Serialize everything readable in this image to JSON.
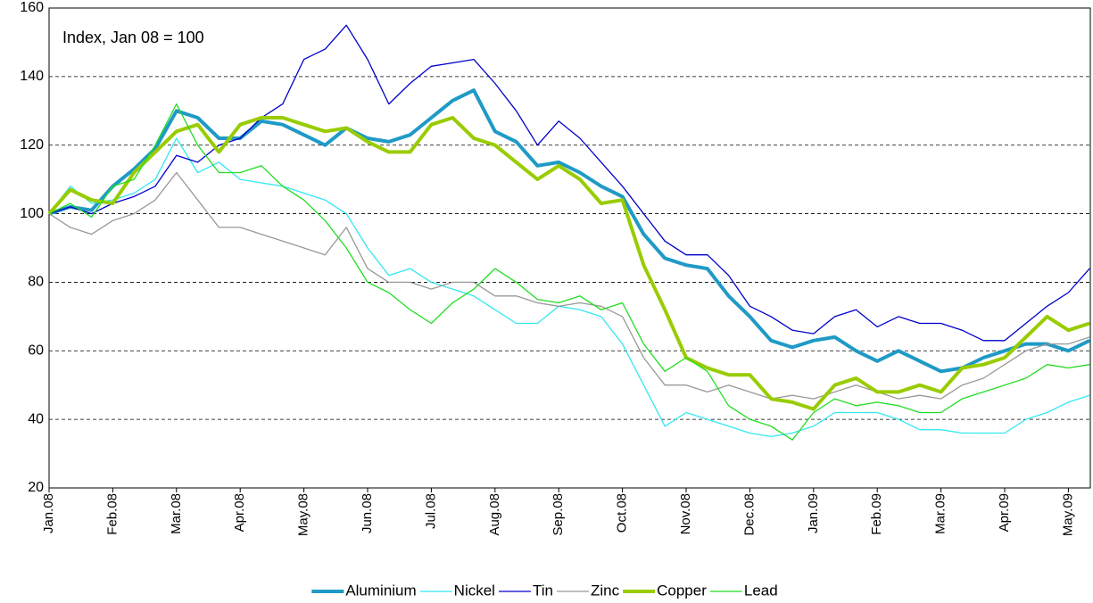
{
  "chart_data": {
    "type": "line",
    "annotation": "Index, Jan 08 = 100",
    "categories": [
      "Jan.08",
      null,
      null,
      "Feb.08",
      null,
      null,
      "Mar.08",
      null,
      null,
      "Apr.08",
      null,
      null,
      "May.08",
      null,
      null,
      "Jun.08",
      null,
      null,
      "Jul.08",
      null,
      null,
      "Aug.08",
      null,
      null,
      "Sep.08",
      null,
      null,
      "Oct.08",
      null,
      null,
      "Nov.08",
      null,
      null,
      "Dec.08",
      null,
      null,
      "Jan.09",
      null,
      null,
      "Feb.09",
      null,
      null,
      "Mar.09",
      null,
      null,
      "Apr.09",
      null,
      null,
      "May.09",
      null
    ],
    "ylim": [
      20,
      160
    ],
    "yticks": [
      20,
      40,
      60,
      80,
      100,
      120,
      140,
      160
    ],
    "grid": true,
    "legend": "bottom",
    "series": [
      {
        "name": "Aluminium",
        "color": "#1f9ac6",
        "line_width": 4,
        "values": [
          100,
          102,
          101,
          108,
          113,
          119,
          130,
          128,
          122,
          122,
          127,
          126,
          123,
          120,
          125,
          122,
          121,
          123,
          128,
          133,
          136,
          124,
          121,
          114,
          115,
          112,
          108,
          105,
          94,
          87,
          85,
          84,
          76,
          70,
          63,
          61,
          63,
          64,
          60,
          57,
          60,
          57,
          54,
          55,
          58,
          60,
          62,
          62,
          60,
          63
        ]
      },
      {
        "name": "Nickel",
        "color": "#33e8f0",
        "line_width": 1.3,
        "values": [
          100,
          108,
          103,
          104,
          106,
          110,
          122,
          112,
          115,
          110,
          109,
          108,
          106,
          104,
          100,
          90,
          82,
          84,
          80,
          78,
          76,
          72,
          68,
          68,
          73,
          72,
          70,
          62,
          50,
          38,
          42,
          40,
          38,
          36,
          35,
          36,
          38,
          42,
          42,
          42,
          40,
          37,
          37,
          36,
          36,
          36,
          40,
          42,
          45,
          47
        ]
      },
      {
        "name": "Tin",
        "color": "#0000cc",
        "line_width": 1.3,
        "values": [
          100,
          102,
          100,
          103,
          105,
          108,
          117,
          115,
          120,
          122,
          128,
          132,
          145,
          148,
          155,
          145,
          132,
          138,
          143,
          144,
          145,
          138,
          130,
          120,
          127,
          122,
          115,
          108,
          100,
          92,
          88,
          88,
          82,
          73,
          70,
          66,
          65,
          70,
          72,
          67,
          70,
          68,
          68,
          66,
          63,
          63,
          68,
          73,
          77,
          84
        ]
      },
      {
        "name": "Zinc",
        "color": "#999999",
        "line_width": 1.3,
        "values": [
          100,
          96,
          94,
          98,
          100,
          104,
          112,
          104,
          96,
          96,
          94,
          92,
          90,
          88,
          96,
          84,
          80,
          80,
          78,
          80,
          80,
          76,
          76,
          74,
          73,
          74,
          73,
          70,
          58,
          50,
          50,
          48,
          50,
          48,
          46,
          47,
          46,
          48,
          50,
          48,
          46,
          47,
          46,
          50,
          52,
          56,
          60,
          62,
          62,
          64
        ]
      },
      {
        "name": "Copper",
        "color": "#99cc00",
        "line_width": 4,
        "values": [
          100,
          107,
          104,
          103,
          112,
          118,
          124,
          126,
          118,
          126,
          128,
          128,
          126,
          124,
          125,
          121,
          118,
          118,
          126,
          128,
          122,
          120,
          115,
          110,
          114,
          110,
          103,
          104,
          85,
          72,
          58,
          55,
          53,
          53,
          46,
          45,
          43,
          50,
          52,
          48,
          48,
          50,
          48,
          55,
          56,
          58,
          64,
          70,
          66,
          68
        ]
      },
      {
        "name": "Lead",
        "color": "#22dd22",
        "line_width": 1.3,
        "values": [
          100,
          103,
          99,
          108,
          110,
          120,
          132,
          120,
          112,
          112,
          114,
          108,
          104,
          98,
          90,
          80,
          77,
          72,
          68,
          74,
          78,
          84,
          80,
          75,
          74,
          76,
          72,
          74,
          62,
          54,
          58,
          54,
          44,
          40,
          38,
          34,
          42,
          46,
          44,
          45,
          44,
          42,
          42,
          46,
          48,
          50,
          52,
          56,
          55,
          56
        ]
      }
    ]
  }
}
